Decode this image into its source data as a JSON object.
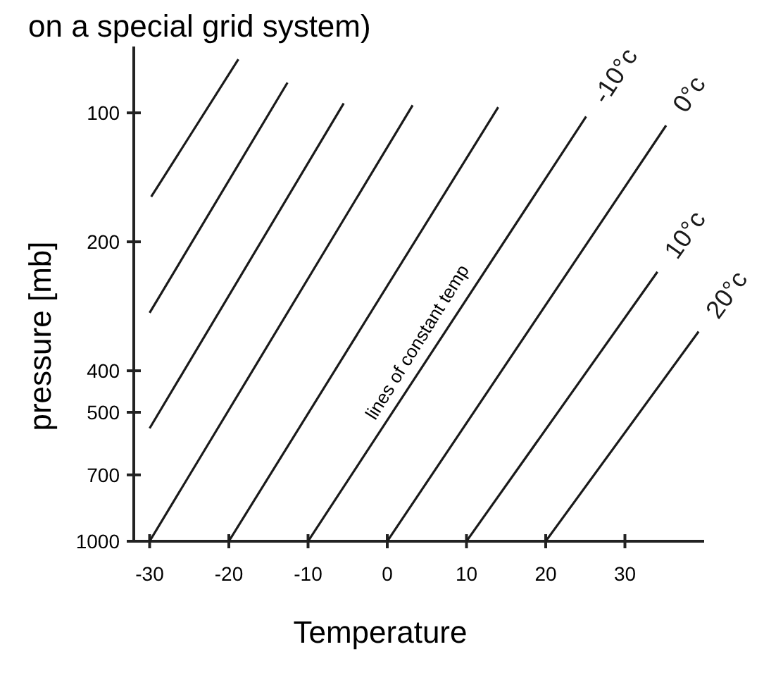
{
  "chart_data": {
    "type": "line",
    "title": "on a special grid system)",
    "xlabel": "Temperature",
    "ylabel": "pressure [mb]",
    "xlim": [
      -32,
      40
    ],
    "xticks": [
      -30,
      -20,
      -10,
      0,
      10,
      20,
      30
    ],
    "ylim": [
      1000,
      70
    ],
    "yticks": [
      100,
      200,
      400,
      500,
      700,
      1000
    ],
    "log": true,
    "grid": false,
    "legend": false,
    "marker": "none",
    "line_style": "solid",
    "annotations": [
      "lines of constant temp"
    ],
    "series": [
      {
        "color": "#1a1a1a",
        "x": [
          -29.8,
          -18.8
        ],
        "values": [
          157,
          75
        ]
      },
      {
        "color": "#1a1a1a",
        "x": [
          -30,
          -12.6
        ],
        "values": [
          293,
          85
        ]
      },
      {
        "color": "#1a1a1a",
        "x": [
          -30,
          -5.5
        ],
        "values": [
          545,
          95
        ]
      },
      {
        "color": "#1a1a1a",
        "x": [
          -30,
          3.2
        ],
        "values": [
          1000,
          96
        ]
      },
      {
        "color": "#1a1a1a",
        "x": [
          -20,
          14
        ],
        "values": [
          1000,
          97
        ]
      },
      {
        "name": "-10°c",
        "color": "#1a1a1a",
        "x": [
          -10,
          25.1
        ],
        "values": [
          1000,
          102
        ]
      },
      {
        "name": "0°c",
        "color": "#1a1a1a",
        "x": [
          0,
          35.2
        ],
        "values": [
          1000,
          107
        ]
      },
      {
        "name": "10°c",
        "color": "#1a1a1a",
        "x": [
          10,
          34.1
        ],
        "values": [
          1000,
          235
        ]
      },
      {
        "name": "20°c",
        "color": "#1a1a1a",
        "x": [
          20,
          39.3
        ],
        "values": [
          1000,
          324
        ]
      }
    ]
  }
}
